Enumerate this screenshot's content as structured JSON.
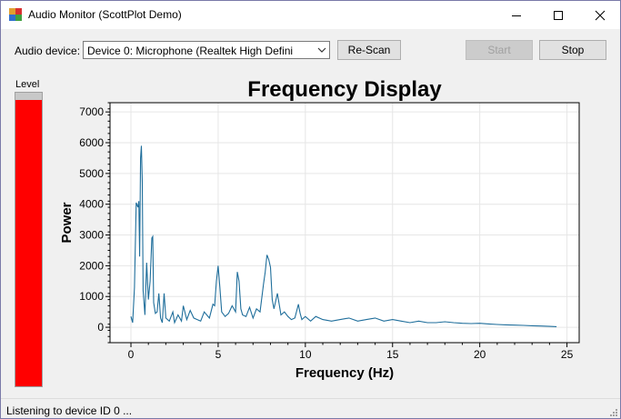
{
  "window": {
    "title": "Audio Monitor (ScottPlot Demo)"
  },
  "toolbar": {
    "device_label": "Audio device:",
    "device_selected": "Device 0: Microphone (Realtek High Defini",
    "rescan_label": "Re-Scan",
    "start_label": "Start",
    "stop_label": "Stop"
  },
  "level": {
    "label": "Level",
    "value": 0.975
  },
  "status": {
    "text": "Listening to device ID 0 ..."
  },
  "colors": {
    "plot_line": "#1f6e9b",
    "level_fill": "#ff0000",
    "accent_title_bg": "#ffffff"
  },
  "chart_data": {
    "type": "line",
    "title": "Frequency Display",
    "xlabel": "Frequency (Hz)",
    "ylabel": "Power",
    "xlim": [
      -1.2,
      25.7
    ],
    "ylim": [
      -500,
      7300
    ],
    "xticks": [
      0,
      5,
      10,
      15,
      20,
      25
    ],
    "yticks": [
      0,
      1000,
      2000,
      3000,
      4000,
      5000,
      6000,
      7000
    ],
    "grid": true,
    "x": [
      0.0,
      0.1,
      0.2,
      0.3,
      0.4,
      0.45,
      0.5,
      0.55,
      0.6,
      0.65,
      0.7,
      0.8,
      0.9,
      1.0,
      1.1,
      1.2,
      1.25,
      1.3,
      1.4,
      1.5,
      1.6,
      1.7,
      1.8,
      1.9,
      2.0,
      2.2,
      2.4,
      2.5,
      2.7,
      2.9,
      3.0,
      3.2,
      3.4,
      3.6,
      3.8,
      4.0,
      4.2,
      4.5,
      4.7,
      4.8,
      4.9,
      5.0,
      5.1,
      5.2,
      5.4,
      5.6,
      5.8,
      6.0,
      6.1,
      6.2,
      6.3,
      6.4,
      6.6,
      6.8,
      7.0,
      7.2,
      7.4,
      7.6,
      7.7,
      7.8,
      7.9,
      8.0,
      8.1,
      8.2,
      8.4,
      8.6,
      8.8,
      9.0,
      9.2,
      9.4,
      9.6,
      9.7,
      9.8,
      10.0,
      10.3,
      10.6,
      11.0,
      11.5,
      12.0,
      12.5,
      13.0,
      13.5,
      14.0,
      14.5,
      15.0,
      15.5,
      16.0,
      16.5,
      17.0,
      17.5,
      18.0,
      18.5,
      19.0,
      19.5,
      20.0,
      20.5,
      21.0,
      21.5,
      22.0,
      22.5,
      23.0,
      23.5,
      24.0,
      24.4
    ],
    "y": [
      350,
      150,
      1300,
      4050,
      3900,
      4100,
      2300,
      5500,
      5900,
      4700,
      1200,
      400,
      2100,
      900,
      1500,
      2900,
      2950,
      800,
      450,
      500,
      1100,
      300,
      150,
      1100,
      300,
      200,
      500,
      150,
      400,
      200,
      700,
      250,
      550,
      300,
      250,
      200,
      500,
      300,
      750,
      700,
      1500,
      2000,
      1300,
      500,
      350,
      450,
      700,
      500,
      1800,
      1500,
      600,
      400,
      350,
      650,
      300,
      600,
      500,
      1400,
      1800,
      2350,
      2200,
      1950,
      900,
      600,
      1100,
      400,
      500,
      350,
      250,
      300,
      750,
      450,
      250,
      350,
      200,
      350,
      250,
      200,
      250,
      300,
      200,
      250,
      300,
      200,
      250,
      200,
      150,
      200,
      150,
      150,
      180,
      150,
      130,
      120,
      130,
      110,
      90,
      80,
      70,
      60,
      50,
      40,
      30,
      20
    ]
  }
}
